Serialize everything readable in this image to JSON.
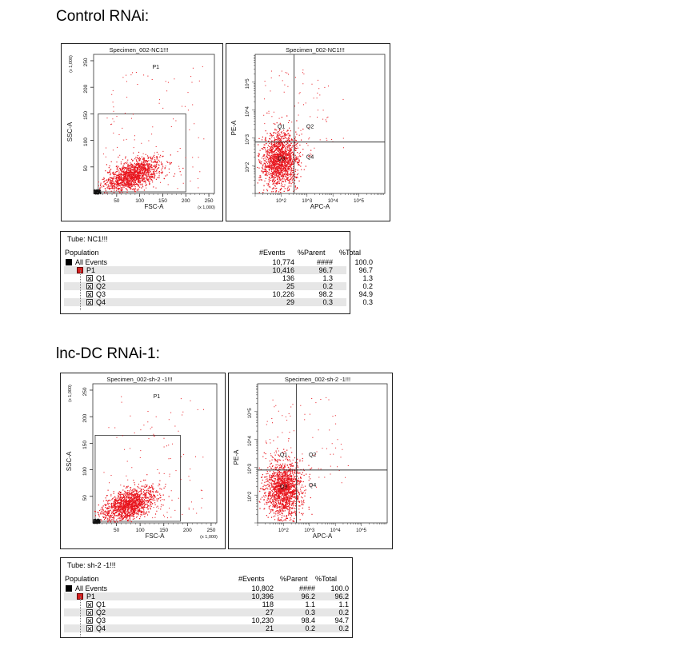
{
  "sections": [
    {
      "heading": "Control RNAi:",
      "scatter_title": "Specimen_002-NC1!!!",
      "quad_title": "Specimen_002-NC1!!!",
      "tube_label": "Tube:  NC1!!!",
      "stats_headers": {
        "population": "Population",
        "events": "#Events",
        "parent": "%Parent",
        "total": "%Total"
      },
      "stats_rows": [
        {
          "name": "All Events",
          "events": "10,774",
          "parent": "####",
          "total": "100.0"
        },
        {
          "name": "P1",
          "events": "10,416",
          "parent": "96.7",
          "total": "96.7"
        },
        {
          "name": "Q1",
          "events": "136",
          "parent": "1.3",
          "total": "1.3"
        },
        {
          "name": "Q2",
          "events": "25",
          "parent": "0.2",
          "total": "0.2"
        },
        {
          "name": "Q3",
          "events": "10,226",
          "parent": "98.2",
          "total": "94.9"
        },
        {
          "name": "Q4",
          "events": "29",
          "parent": "0.3",
          "total": "0.3"
        }
      ]
    },
    {
      "heading": "lnc-DC RNAi-1:",
      "scatter_title": "Specimen_002-sh-2 -1!!!",
      "quad_title": "Specimen_002-sh-2 -1!!!",
      "tube_label": "Tube:  sh-2 -1!!!",
      "stats_headers": {
        "population": "Population",
        "events": "#Events",
        "parent": "%Parent",
        "total": "%Total"
      },
      "stats_rows": [
        {
          "name": "All Events",
          "events": "10,802",
          "parent": "####",
          "total": "100.0"
        },
        {
          "name": "P1",
          "events": "10,396",
          "parent": "96.2",
          "total": "96.2"
        },
        {
          "name": "Q1",
          "events": "118",
          "parent": "1.1",
          "total": "1.1"
        },
        {
          "name": "Q2",
          "events": "27",
          "parent": "0.3",
          "total": "0.2"
        },
        {
          "name": "Q3",
          "events": "10,230",
          "parent": "98.4",
          "total": "94.7"
        },
        {
          "name": "Q4",
          "events": "21",
          "parent": "0.2",
          "total": "0.2"
        }
      ]
    }
  ],
  "colors": {
    "events": "#e8141c",
    "debris": "#111111",
    "gate": "#333333"
  },
  "chart_data": [
    {
      "type": "scatter",
      "title": "Specimen_002-NC1!!!",
      "xlabel": "FSC-A",
      "ylabel": "SSC-A",
      "x_unit": "(x 1,000)",
      "y_unit": "(x 1,000)",
      "xlim": [
        0,
        262
      ],
      "ylim": [
        0,
        262
      ],
      "xticks": [
        "50",
        "100",
        "150",
        "200",
        "250"
      ],
      "yticks": [
        "50",
        "100",
        "150",
        "200",
        "250"
      ],
      "gate": {
        "name": "P1",
        "x": [
          10,
          200
        ],
        "y": [
          3,
          150
        ]
      },
      "cluster": {
        "x_center": 85,
        "y_center": 36,
        "x_spread": 30,
        "y_spread": 13,
        "tilt": 0.28
      },
      "event_count": 10774
    },
    {
      "type": "scatter",
      "title": "Specimen_002-NC1!!!",
      "xlabel": "APC-A",
      "ylabel": "PE-A",
      "log_scale": true,
      "xlim": [
        1,
        6
      ],
      "ylim": [
        1,
        6
      ],
      "xticks": [
        "10^2",
        "10^3",
        "10^4",
        "10^5"
      ],
      "yticks": [
        "10^2",
        "10^3",
        "10^4",
        "10^5"
      ],
      "quadrant_split": {
        "x": 2.5,
        "y": 2.85
      },
      "quadrants": [
        "Q1",
        "Q2",
        "Q3",
        "Q4"
      ],
      "cluster": {
        "x_center": 1.95,
        "y_center": 2.2,
        "x_spread": 0.35,
        "y_spread": 0.5
      }
    },
    {
      "type": "scatter",
      "title": "Specimen_002-sh-2 -1!!!",
      "xlabel": "FSC-A",
      "ylabel": "SSC-A",
      "x_unit": "(x 1,000)",
      "y_unit": "(x 1,000)",
      "xlim": [
        0,
        262
      ],
      "ylim": [
        0,
        262
      ],
      "xticks": [
        "50",
        "100",
        "150",
        "200",
        "250"
      ],
      "yticks": [
        "50",
        "100",
        "150",
        "200",
        "250"
      ],
      "gate": {
        "name": "P1",
        "x": [
          5,
          185
        ],
        "y": [
          3,
          165
        ]
      },
      "cluster": {
        "x_center": 75,
        "y_center": 35,
        "x_spread": 28,
        "y_spread": 14,
        "tilt": 0.3
      },
      "event_count": 10802
    },
    {
      "type": "scatter",
      "title": "Specimen_002-sh-2 -1!!!",
      "xlabel": "APC-A",
      "ylabel": "PE-A",
      "log_scale": true,
      "xlim": [
        1,
        6
      ],
      "ylim": [
        1,
        6
      ],
      "xticks": [
        "10^2",
        "10^3",
        "10^4",
        "10^5"
      ],
      "yticks": [
        "10^2",
        "10^3",
        "10^4",
        "10^5"
      ],
      "quadrant_split": {
        "x": 2.5,
        "y": 2.9
      },
      "quadrants": [
        "Q1",
        "Q2",
        "Q3",
        "Q4"
      ],
      "cluster": {
        "x_center": 2.0,
        "y_center": 2.25,
        "x_spread": 0.35,
        "y_spread": 0.5
      }
    }
  ]
}
